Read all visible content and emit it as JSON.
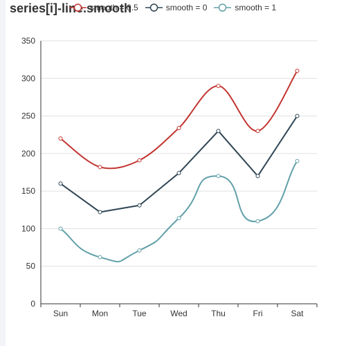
{
  "chart_data": {
    "type": "line",
    "title": "series[i]-line.smooth",
    "categories": [
      "Sun",
      "Mon",
      "Tue",
      "Wed",
      "Thu",
      "Fri",
      "Sat"
    ],
    "ylim": [
      0,
      350
    ],
    "yticks": [
      0,
      50,
      100,
      150,
      200,
      250,
      300,
      350
    ],
    "grid": true,
    "legend_position": "top",
    "series": [
      {
        "name": "smooth = 0.5",
        "smooth": 0.5,
        "color": "#c23531",
        "values": [
          220,
          182,
          191,
          234,
          290,
          230,
          310
        ]
      },
      {
        "name": "smooth = 0",
        "smooth": 0,
        "color": "#2f4554",
        "values": [
          160,
          122,
          131,
          174,
          230,
          170,
          250
        ]
      },
      {
        "name": "smooth = 1",
        "smooth": 1,
        "color": "#61a0a8",
        "values": [
          100,
          62,
          71,
          114,
          170,
          110,
          190
        ]
      }
    ]
  }
}
